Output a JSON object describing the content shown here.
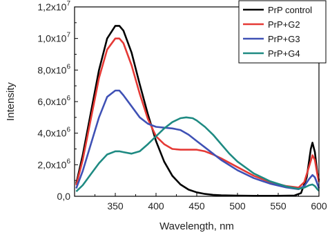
{
  "chart_data": {
    "type": "line",
    "xlabel": "Wavelength, nm",
    "ylabel": "Intensity",
    "xlim": [
      300,
      600
    ],
    "ylim": [
      0,
      12000000
    ],
    "x_ticks": [
      "350",
      "400",
      "450",
      "500",
      "550",
      "600"
    ],
    "y_ticks": [
      {
        "value": 0,
        "mantissa": "0,0",
        "exp": ""
      },
      {
        "value": 2000000,
        "mantissa": "2,0x10",
        "exp": "6"
      },
      {
        "value": 4000000,
        "mantissa": "4,0x10",
        "exp": "6"
      },
      {
        "value": 6000000,
        "mantissa": "6,0x10",
        "exp": "6"
      },
      {
        "value": 8000000,
        "mantissa": "8,0x10",
        "exp": "6"
      },
      {
        "value": 10000000,
        "mantissa": "1,0x10",
        "exp": "7"
      },
      {
        "value": 12000000,
        "mantissa": "1,2x10",
        "exp": "7"
      }
    ],
    "legend_position": "top-right",
    "grid": false,
    "series": [
      {
        "name": "PrP control",
        "color": "#000000",
        "points": [
          [
            302,
            800000
          ],
          [
            310,
            2600000
          ],
          [
            320,
            5300000
          ],
          [
            330,
            8000000
          ],
          [
            340,
            10000000
          ],
          [
            350,
            10800000
          ],
          [
            355,
            10800000
          ],
          [
            360,
            10500000
          ],
          [
            370,
            9100000
          ],
          [
            380,
            7100000
          ],
          [
            390,
            5200000
          ],
          [
            400,
            3500000
          ],
          [
            410,
            2200000
          ],
          [
            420,
            1300000
          ],
          [
            430,
            750000
          ],
          [
            440,
            420000
          ],
          [
            450,
            250000
          ],
          [
            460,
            150000
          ],
          [
            470,
            90000
          ],
          [
            480,
            60000
          ],
          [
            500,
            40000
          ],
          [
            520,
            30000
          ],
          [
            550,
            30000
          ],
          [
            570,
            50000
          ],
          [
            578,
            200000
          ],
          [
            585,
            1200000
          ],
          [
            590,
            3000000
          ],
          [
            592,
            3400000
          ],
          [
            595,
            2800000
          ],
          [
            598,
            1500000
          ],
          [
            600,
            1000000
          ]
        ]
      },
      {
        "name": "PrP+G2",
        "color": "#e53935",
        "points": [
          [
            302,
            700000
          ],
          [
            310,
            2300000
          ],
          [
            320,
            4900000
          ],
          [
            330,
            7500000
          ],
          [
            340,
            9300000
          ],
          [
            350,
            10000000
          ],
          [
            355,
            10000000
          ],
          [
            360,
            9700000
          ],
          [
            370,
            8300000
          ],
          [
            380,
            6500000
          ],
          [
            390,
            4900000
          ],
          [
            400,
            3800000
          ],
          [
            410,
            3300000
          ],
          [
            420,
            3000000
          ],
          [
            430,
            2950000
          ],
          [
            440,
            2950000
          ],
          [
            450,
            2950000
          ],
          [
            460,
            2850000
          ],
          [
            470,
            2650000
          ],
          [
            480,
            2400000
          ],
          [
            500,
            1850000
          ],
          [
            520,
            1300000
          ],
          [
            540,
            900000
          ],
          [
            560,
            650000
          ],
          [
            575,
            550000
          ],
          [
            582,
            900000
          ],
          [
            588,
            1900000
          ],
          [
            592,
            2600000
          ],
          [
            595,
            2300000
          ],
          [
            598,
            1400000
          ],
          [
            600,
            900000
          ]
        ]
      },
      {
        "name": "PrP+G3",
        "color": "#3f51b5",
        "points": [
          [
            302,
            500000
          ],
          [
            310,
            1600000
          ],
          [
            320,
            3300000
          ],
          [
            330,
            5000000
          ],
          [
            340,
            6300000
          ],
          [
            350,
            6700000
          ],
          [
            355,
            6700000
          ],
          [
            360,
            6400000
          ],
          [
            370,
            5700000
          ],
          [
            380,
            5000000
          ],
          [
            390,
            4600000
          ],
          [
            400,
            4400000
          ],
          [
            410,
            4350000
          ],
          [
            420,
            4300000
          ],
          [
            430,
            4200000
          ],
          [
            440,
            3900000
          ],
          [
            450,
            3500000
          ],
          [
            460,
            3100000
          ],
          [
            470,
            2700000
          ],
          [
            480,
            2300000
          ],
          [
            500,
            1650000
          ],
          [
            520,
            1150000
          ],
          [
            540,
            800000
          ],
          [
            560,
            560000
          ],
          [
            575,
            450000
          ],
          [
            582,
            650000
          ],
          [
            588,
            1100000
          ],
          [
            592,
            1350000
          ],
          [
            595,
            1200000
          ],
          [
            598,
            800000
          ],
          [
            600,
            500000
          ]
        ]
      },
      {
        "name": "PrP+G4",
        "color": "#1e8a82",
        "points": [
          [
            302,
            300000
          ],
          [
            310,
            700000
          ],
          [
            320,
            1400000
          ],
          [
            330,
            2100000
          ],
          [
            340,
            2650000
          ],
          [
            350,
            2850000
          ],
          [
            355,
            2850000
          ],
          [
            360,
            2800000
          ],
          [
            370,
            2700000
          ],
          [
            380,
            2850000
          ],
          [
            390,
            3300000
          ],
          [
            400,
            3800000
          ],
          [
            410,
            4300000
          ],
          [
            420,
            4700000
          ],
          [
            430,
            4950000
          ],
          [
            437,
            5000000
          ],
          [
            445,
            4950000
          ],
          [
            450,
            4800000
          ],
          [
            460,
            4400000
          ],
          [
            470,
            3900000
          ],
          [
            480,
            3300000
          ],
          [
            490,
            2700000
          ],
          [
            500,
            2200000
          ],
          [
            520,
            1450000
          ],
          [
            540,
            950000
          ],
          [
            560,
            620000
          ],
          [
            575,
            470000
          ],
          [
            582,
            550000
          ],
          [
            588,
            700000
          ],
          [
            592,
            750000
          ],
          [
            595,
            650000
          ],
          [
            598,
            450000
          ],
          [
            600,
            350000
          ]
        ]
      }
    ]
  }
}
